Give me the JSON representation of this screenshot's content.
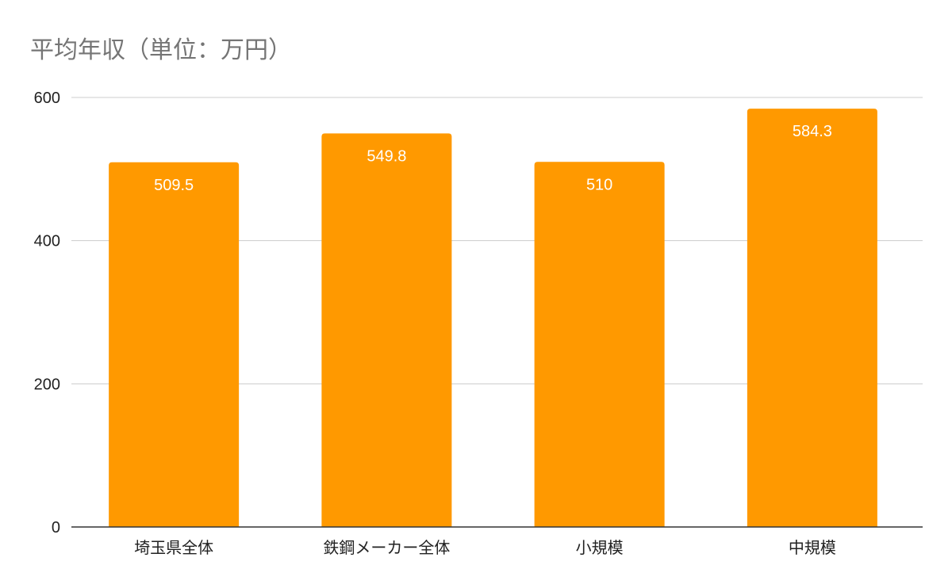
{
  "chart_data": {
    "type": "bar",
    "title": "平均年収（単位：万円）",
    "xlabel": "",
    "ylabel": "",
    "categories": [
      "埼玉県全体",
      "鉄鋼メーカー全体",
      "小規模",
      "中規模"
    ],
    "values": [
      509.5,
      549.8,
      510,
      584.3
    ],
    "data_labels": [
      "509.5",
      "549.8",
      "510",
      "584.3"
    ],
    "ylim": [
      0,
      600
    ],
    "yticks": [
      0,
      200,
      400,
      600
    ],
    "grid": true,
    "legend": "none",
    "colors": {
      "bar": "#ff9900",
      "grid": "#cccccc",
      "axis": "#333333",
      "title": "#757575"
    }
  }
}
